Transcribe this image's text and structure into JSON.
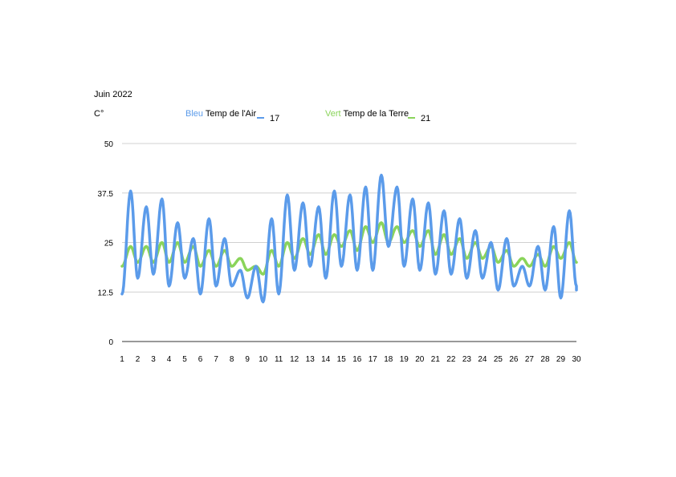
{
  "header": {
    "period": "Juin  2022",
    "unit": "C°"
  },
  "legend": {
    "blue": {
      "color_word": "Bleu",
      "label": "Temp de l'Air",
      "value": "17",
      "color": "#5b9bea"
    },
    "green": {
      "color_word": "Vert",
      "label": "Temp de la Terre",
      "value": "21",
      "color": "#8ad45a"
    }
  },
  "chart_data": {
    "type": "line",
    "title": "Juin  2022",
    "ylabel": "C°",
    "xlabel": "",
    "ylim": [
      0,
      50
    ],
    "xlim": [
      1,
      30
    ],
    "y_ticks": [
      "0",
      "12.5",
      "25",
      "37.5",
      "50"
    ],
    "x_ticks": [
      "1",
      "2",
      "3",
      "4",
      "5",
      "6",
      "7",
      "8",
      "9",
      "10",
      "11",
      "12",
      "13",
      "14",
      "15",
      "16",
      "17",
      "18",
      "19",
      "20",
      "21",
      "22",
      "23",
      "24",
      "25",
      "26",
      "27",
      "28",
      "29",
      "30"
    ],
    "grid": true,
    "legend_position": "top",
    "series": [
      {
        "name": "Temp de l'Air",
        "color": "#5b9bea",
        "daily_min": [
          12,
          16,
          17,
          14,
          16,
          12,
          14,
          14,
          11,
          10,
          12,
          18,
          19,
          16,
          19,
          18,
          18,
          24,
          19,
          18,
          17,
          17,
          16,
          16,
          13,
          14,
          14,
          13,
          11,
          14
        ],
        "daily_max": [
          38,
          34,
          36,
          30,
          26,
          31,
          26,
          18,
          19,
          31,
          37,
          35,
          34,
          38,
          37,
          39,
          42,
          39,
          36,
          35,
          33,
          31,
          28,
          25,
          26,
          19,
          24,
          29,
          33,
          16
        ],
        "last_value": 13
      },
      {
        "name": "Temp de la Terre",
        "color": "#8ad45a",
        "daily_min": [
          19,
          20,
          20,
          20,
          20,
          19,
          19,
          19,
          18,
          17,
          19,
          21,
          22,
          22,
          24,
          23,
          25,
          25,
          25,
          24,
          22,
          22,
          21,
          21,
          20,
          19,
          19,
          19,
          21,
          20
        ],
        "daily_max": [
          24,
          24,
          25,
          25,
          24,
          23,
          23,
          21,
          19,
          23,
          25,
          26,
          27,
          27,
          28,
          29,
          30,
          29,
          28,
          28,
          27,
          26,
          25,
          24,
          23,
          21,
          22,
          24,
          25,
          21
        ],
        "last_value": 20
      }
    ]
  }
}
